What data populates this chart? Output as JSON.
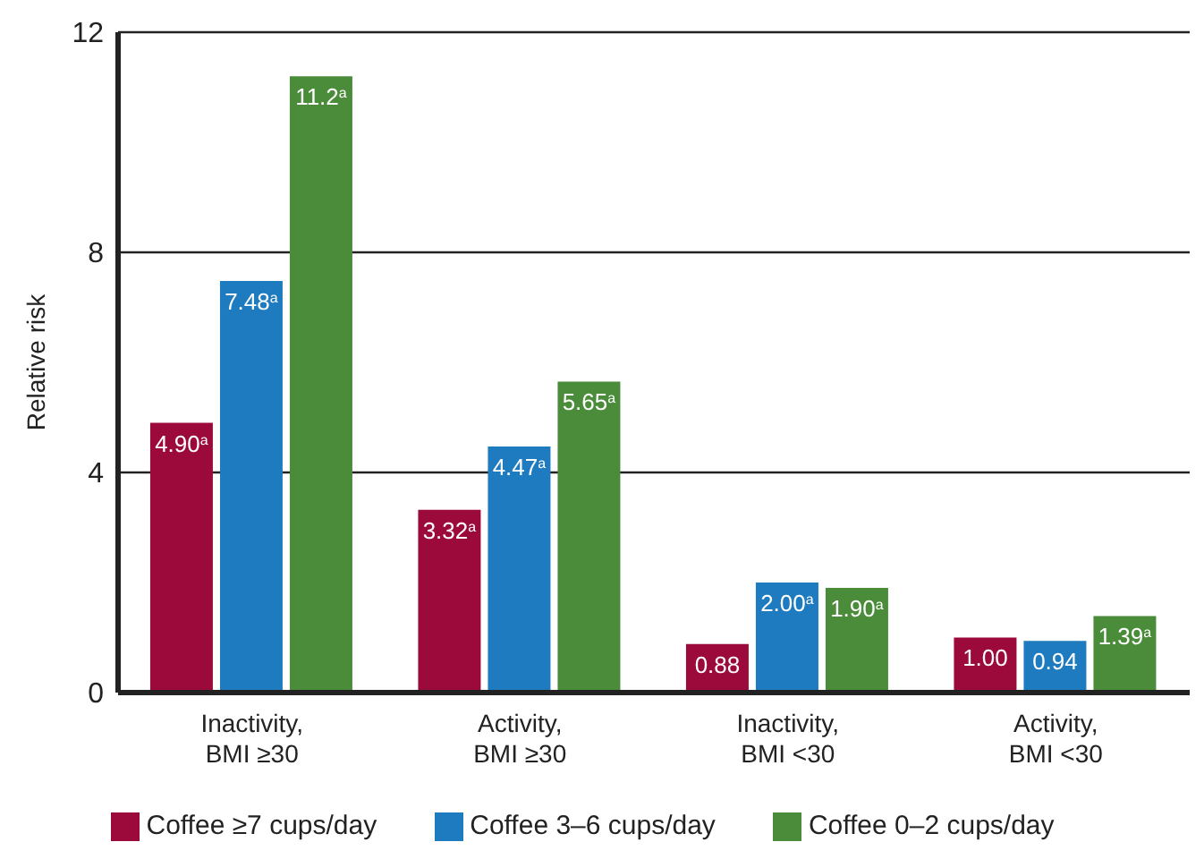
{
  "chart_data": {
    "type": "bar",
    "ylabel": "Relative risk",
    "categories": [
      "Inactivity,\nBMI ≥30",
      "Activity,\nBMI ≥30",
      "Inactivity,\nBMI <30",
      "Activity,\nBMI <30"
    ],
    "series": [
      {
        "name": "Coffee ≥7 cups/day",
        "color": "#9b0a3a",
        "values": [
          4.9,
          3.32,
          0.88,
          1.0
        ],
        "value_labels": [
          "4.90$^{a}$",
          "3.32$^{a}$",
          "0.88",
          "1.00"
        ]
      },
      {
        "name": "Coffee 3–6 cups/day",
        "color": "#1f7bbf",
        "values": [
          7.48,
          4.47,
          2.0,
          0.94
        ],
        "value_labels": [
          "7.48$^{a}$",
          "4.47$^{a}$",
          "2.00$^{a}$",
          "0.94"
        ]
      },
      {
        "name": "Coffee 0–2 cups/day",
        "color": "#4a8c3a",
        "values": [
          11.2,
          5.65,
          1.9,
          1.39
        ],
        "value_labels": [
          "11.2$^{a}$",
          "5.65$^{a}$",
          "1.90$^{a}$",
          "1.39$^{a}$"
        ]
      }
    ],
    "ylim": [
      0,
      12
    ],
    "yticks": [
      0,
      4,
      8,
      12
    ],
    "grid": "y",
    "legend": "bottom"
  }
}
